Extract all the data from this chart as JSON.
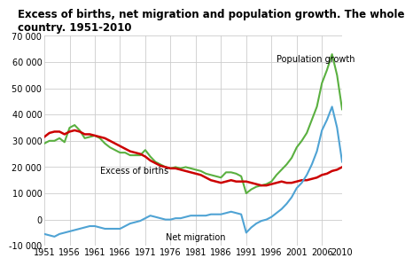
{
  "title": "Excess of births, net migration and population growth. The whole\ncountry. 1951-2010",
  "title_fontsize": 8.5,
  "years": [
    1951,
    1952,
    1953,
    1954,
    1955,
    1956,
    1957,
    1958,
    1959,
    1960,
    1961,
    1962,
    1963,
    1964,
    1965,
    1966,
    1967,
    1968,
    1969,
    1970,
    1971,
    1972,
    1973,
    1974,
    1975,
    1976,
    1977,
    1978,
    1979,
    1980,
    1981,
    1982,
    1983,
    1984,
    1985,
    1986,
    1987,
    1988,
    1989,
    1990,
    1991,
    1992,
    1993,
    1994,
    1995,
    1996,
    1997,
    1998,
    1999,
    2000,
    2001,
    2002,
    2003,
    2004,
    2005,
    2006,
    2007,
    2008,
    2009,
    2010
  ],
  "excess_births": [
    31500,
    33000,
    33500,
    33500,
    32500,
    33500,
    34000,
    33500,
    32500,
    32500,
    32000,
    31500,
    31000,
    30000,
    29000,
    28000,
    27000,
    26000,
    25500,
    25000,
    24000,
    22500,
    21500,
    20500,
    20000,
    19500,
    19500,
    19000,
    18500,
    18000,
    17500,
    17000,
    16000,
    15000,
    14500,
    14000,
    14500,
    15000,
    14500,
    14500,
    14500,
    14000,
    13500,
    13000,
    13000,
    13500,
    14000,
    14500,
    14000,
    14000,
    14500,
    15000,
    15000,
    15500,
    16000,
    17000,
    17500,
    18500,
    19000,
    20000
  ],
  "net_migration": [
    -5500,
    -6000,
    -6500,
    -5500,
    -5000,
    -4500,
    -4000,
    -3500,
    -3000,
    -2500,
    -2500,
    -3000,
    -3500,
    -3500,
    -3500,
    -3500,
    -2500,
    -1500,
    -1000,
    -500,
    500,
    1500,
    1000,
    500,
    0,
    0,
    500,
    500,
    1000,
    1500,
    1500,
    1500,
    1500,
    2000,
    2000,
    2000,
    2500,
    3000,
    2500,
    2000,
    -5000,
    -3000,
    -1500,
    -500,
    0,
    1000,
    2500,
    4000,
    6000,
    8500,
    12000,
    14000,
    17000,
    21000,
    26000,
    34000,
    38000,
    43000,
    35000,
    22000
  ],
  "population_growth": [
    29000,
    30000,
    30000,
    31000,
    29500,
    35000,
    36000,
    34000,
    31000,
    31500,
    32000,
    31000,
    29000,
    27500,
    26500,
    25500,
    25500,
    24500,
    24500,
    24500,
    26500,
    24000,
    22000,
    21000,
    20000,
    19500,
    20000,
    19500,
    20000,
    19500,
    19000,
    18500,
    17500,
    17000,
    16500,
    16000,
    18000,
    18000,
    17500,
    16500,
    10000,
    11500,
    12500,
    13000,
    13500,
    14500,
    17000,
    19000,
    21000,
    23500,
    27500,
    30000,
    33000,
    38000,
    43000,
    52000,
    57000,
    63000,
    55000,
    42000
  ],
  "excess_births_color": "#cc0000",
  "net_migration_color": "#4fa3d4",
  "population_growth_color": "#5ab040",
  "background_color": "#ffffff",
  "grid_color": "#cccccc",
  "ylim": [
    -10000,
    70000
  ],
  "yticks": [
    -10000,
    0,
    10000,
    20000,
    30000,
    40000,
    50000,
    60000,
    70000
  ],
  "xticks": [
    1951,
    1956,
    1961,
    1966,
    1971,
    1976,
    1981,
    1986,
    1991,
    1996,
    2001,
    2006,
    2010
  ],
  "label_excess": "Excess of births",
  "label_net": "Net migration",
  "label_pop": "Population growth"
}
